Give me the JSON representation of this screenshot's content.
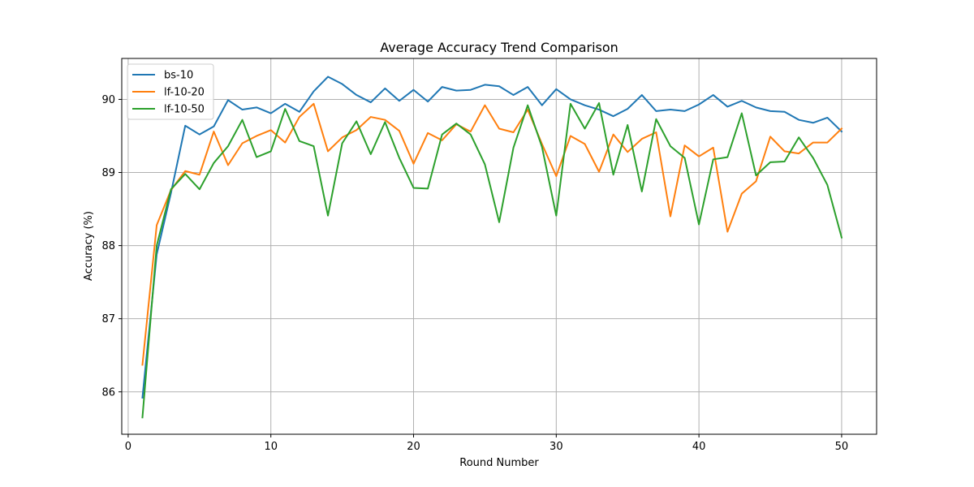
{
  "chart_data": {
    "type": "line",
    "title": "Average Accuracy Trend Comparison",
    "xlabel": "Round Number",
    "ylabel": "Accuracy (%)",
    "xlim": [
      -0.45,
      52.45
    ],
    "ylim": [
      85.42,
      90.56
    ],
    "xticks": [
      0,
      10,
      20,
      30,
      40,
      50
    ],
    "yticks": [
      86,
      87,
      88,
      89,
      90
    ],
    "grid": true,
    "legend_position": "upper-left",
    "x": [
      1,
      2,
      3,
      4,
      5,
      6,
      7,
      8,
      9,
      10,
      11,
      12,
      13,
      14,
      15,
      16,
      17,
      18,
      19,
      20,
      21,
      22,
      23,
      24,
      25,
      26,
      27,
      28,
      29,
      30,
      31,
      32,
      33,
      34,
      35,
      36,
      37,
      38,
      39,
      40,
      41,
      42,
      43,
      44,
      45,
      46,
      47,
      48,
      49,
      50
    ],
    "series": [
      {
        "name": "bs-10",
        "color": "#1f77b4",
        "values": [
          85.92,
          87.88,
          88.72,
          89.64,
          89.52,
          89.63,
          89.99,
          89.86,
          89.89,
          89.81,
          89.94,
          89.83,
          90.11,
          90.31,
          90.21,
          90.06,
          89.96,
          90.15,
          89.98,
          90.13,
          89.97,
          90.17,
          90.12,
          90.13,
          90.2,
          90.18,
          90.06,
          90.17,
          89.92,
          90.14,
          90.0,
          89.92,
          89.86,
          89.77,
          89.87,
          90.06,
          89.84,
          89.86,
          89.84,
          89.93,
          90.06,
          89.9,
          89.98,
          89.89,
          89.84,
          89.83,
          89.72,
          89.68,
          89.75,
          89.56
        ]
      },
      {
        "name": "lf-10-20",
        "color": "#ff7f0e",
        "values": [
          86.37,
          88.28,
          88.76,
          89.02,
          88.97,
          89.56,
          89.1,
          89.4,
          89.5,
          89.58,
          89.41,
          89.76,
          89.94,
          89.29,
          89.48,
          89.58,
          89.76,
          89.72,
          89.57,
          89.12,
          89.54,
          89.44,
          89.66,
          89.56,
          89.92,
          89.6,
          89.55,
          89.86,
          89.39,
          88.95,
          89.5,
          89.39,
          89.01,
          89.52,
          89.28,
          89.46,
          89.55,
          88.4,
          89.37,
          89.22,
          89.34,
          88.19,
          88.71,
          88.88,
          89.49,
          89.29,
          89.26,
          89.41,
          89.41,
          89.6
        ]
      },
      {
        "name": "lf-10-50",
        "color": "#2ca02c",
        "values": [
          85.65,
          88.0,
          88.77,
          88.98,
          88.77,
          89.13,
          89.36,
          89.72,
          89.21,
          89.29,
          89.87,
          89.43,
          89.36,
          88.41,
          89.4,
          89.7,
          89.25,
          89.69,
          89.2,
          88.79,
          88.78,
          89.52,
          89.67,
          89.52,
          89.11,
          88.32,
          89.34,
          89.92,
          89.35,
          88.41,
          89.94,
          89.6,
          89.95,
          88.97,
          89.65,
          88.74,
          89.73,
          89.36,
          89.2,
          88.29,
          89.18,
          89.21,
          89.81,
          88.96,
          89.14,
          89.15,
          89.48,
          89.2,
          88.83,
          88.11
        ]
      }
    ]
  }
}
